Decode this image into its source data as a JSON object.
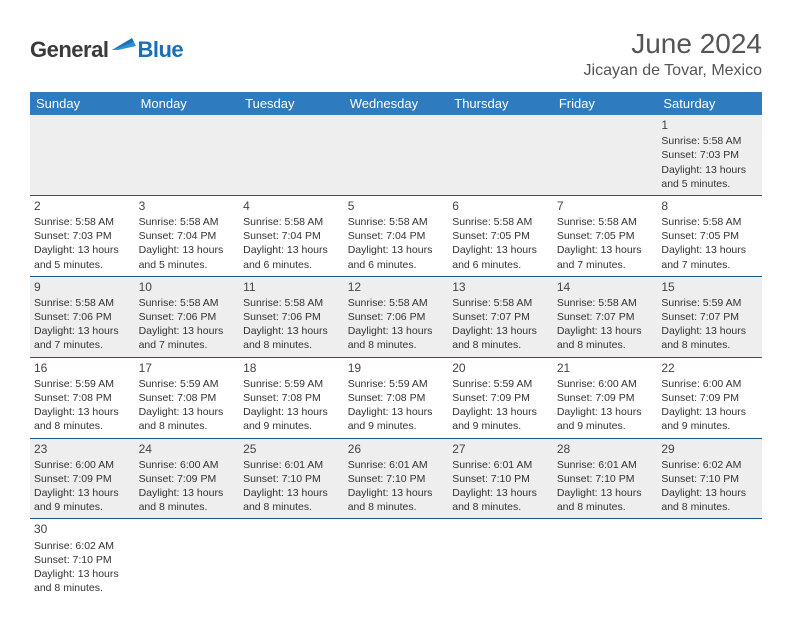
{
  "logo": {
    "text1": "General",
    "text2": "Blue"
  },
  "title": "June 2024",
  "location": "Jicayan de Tovar, Mexico",
  "accent_color": "#2f7bbf",
  "border_color": "#1a5a94",
  "alt_row_bg": "#eeeeee",
  "weekdays": [
    "Sunday",
    "Monday",
    "Tuesday",
    "Wednesday",
    "Thursday",
    "Friday",
    "Saturday"
  ],
  "weeks": [
    [
      null,
      null,
      null,
      null,
      null,
      null,
      {
        "d": "1",
        "sr": "5:58 AM",
        "ss": "7:03 PM",
        "dl": "13 hours and 5 minutes."
      }
    ],
    [
      {
        "d": "2",
        "sr": "5:58 AM",
        "ss": "7:03 PM",
        "dl": "13 hours and 5 minutes."
      },
      {
        "d": "3",
        "sr": "5:58 AM",
        "ss": "7:04 PM",
        "dl": "13 hours and 5 minutes."
      },
      {
        "d": "4",
        "sr": "5:58 AM",
        "ss": "7:04 PM",
        "dl": "13 hours and 6 minutes."
      },
      {
        "d": "5",
        "sr": "5:58 AM",
        "ss": "7:04 PM",
        "dl": "13 hours and 6 minutes."
      },
      {
        "d": "6",
        "sr": "5:58 AM",
        "ss": "7:05 PM",
        "dl": "13 hours and 6 minutes."
      },
      {
        "d": "7",
        "sr": "5:58 AM",
        "ss": "7:05 PM",
        "dl": "13 hours and 7 minutes."
      },
      {
        "d": "8",
        "sr": "5:58 AM",
        "ss": "7:05 PM",
        "dl": "13 hours and 7 minutes."
      }
    ],
    [
      {
        "d": "9",
        "sr": "5:58 AM",
        "ss": "7:06 PM",
        "dl": "13 hours and 7 minutes."
      },
      {
        "d": "10",
        "sr": "5:58 AM",
        "ss": "7:06 PM",
        "dl": "13 hours and 7 minutes."
      },
      {
        "d": "11",
        "sr": "5:58 AM",
        "ss": "7:06 PM",
        "dl": "13 hours and 8 minutes."
      },
      {
        "d": "12",
        "sr": "5:58 AM",
        "ss": "7:06 PM",
        "dl": "13 hours and 8 minutes."
      },
      {
        "d": "13",
        "sr": "5:58 AM",
        "ss": "7:07 PM",
        "dl": "13 hours and 8 minutes."
      },
      {
        "d": "14",
        "sr": "5:58 AM",
        "ss": "7:07 PM",
        "dl": "13 hours and 8 minutes."
      },
      {
        "d": "15",
        "sr": "5:59 AM",
        "ss": "7:07 PM",
        "dl": "13 hours and 8 minutes."
      }
    ],
    [
      {
        "d": "16",
        "sr": "5:59 AM",
        "ss": "7:08 PM",
        "dl": "13 hours and 8 minutes."
      },
      {
        "d": "17",
        "sr": "5:59 AM",
        "ss": "7:08 PM",
        "dl": "13 hours and 8 minutes."
      },
      {
        "d": "18",
        "sr": "5:59 AM",
        "ss": "7:08 PM",
        "dl": "13 hours and 9 minutes."
      },
      {
        "d": "19",
        "sr": "5:59 AM",
        "ss": "7:08 PM",
        "dl": "13 hours and 9 minutes."
      },
      {
        "d": "20",
        "sr": "5:59 AM",
        "ss": "7:09 PM",
        "dl": "13 hours and 9 minutes."
      },
      {
        "d": "21",
        "sr": "6:00 AM",
        "ss": "7:09 PM",
        "dl": "13 hours and 9 minutes."
      },
      {
        "d": "22",
        "sr": "6:00 AM",
        "ss": "7:09 PM",
        "dl": "13 hours and 9 minutes."
      }
    ],
    [
      {
        "d": "23",
        "sr": "6:00 AM",
        "ss": "7:09 PM",
        "dl": "13 hours and 9 minutes."
      },
      {
        "d": "24",
        "sr": "6:00 AM",
        "ss": "7:09 PM",
        "dl": "13 hours and 8 minutes."
      },
      {
        "d": "25",
        "sr": "6:01 AM",
        "ss": "7:10 PM",
        "dl": "13 hours and 8 minutes."
      },
      {
        "d": "26",
        "sr": "6:01 AM",
        "ss": "7:10 PM",
        "dl": "13 hours and 8 minutes."
      },
      {
        "d": "27",
        "sr": "6:01 AM",
        "ss": "7:10 PM",
        "dl": "13 hours and 8 minutes."
      },
      {
        "d": "28",
        "sr": "6:01 AM",
        "ss": "7:10 PM",
        "dl": "13 hours and 8 minutes."
      },
      {
        "d": "29",
        "sr": "6:02 AM",
        "ss": "7:10 PM",
        "dl": "13 hours and 8 minutes."
      }
    ],
    [
      {
        "d": "30",
        "sr": "6:02 AM",
        "ss": "7:10 PM",
        "dl": "13 hours and 8 minutes."
      },
      null,
      null,
      null,
      null,
      null,
      null
    ]
  ],
  "labels": {
    "sunrise": "Sunrise:",
    "sunset": "Sunset:",
    "daylight": "Daylight:"
  }
}
